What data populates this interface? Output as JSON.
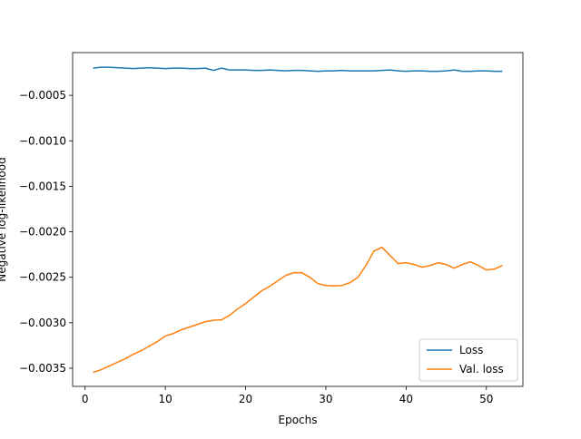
{
  "chart_data": {
    "type": "line",
    "xlabel": "Epochs",
    "ylabel": "Negative log-likelihood",
    "x": [
      1,
      2,
      3,
      4,
      5,
      6,
      7,
      8,
      9,
      10,
      11,
      12,
      13,
      14,
      15,
      16,
      17,
      18,
      19,
      20,
      21,
      22,
      23,
      24,
      25,
      26,
      27,
      28,
      29,
      30,
      31,
      32,
      33,
      34,
      35,
      36,
      37,
      38,
      39,
      40,
      41,
      42,
      43,
      44,
      45,
      46,
      47,
      48,
      49,
      50,
      51,
      52
    ],
    "series": [
      {
        "name": "Loss",
        "color": "#1f77b4",
        "values": [
          -0.000201,
          -0.000191,
          -0.000191,
          -0.000196,
          -0.000201,
          -0.000206,
          -0.000201,
          -0.000196,
          -0.000201,
          -0.000206,
          -0.000201,
          -0.000201,
          -0.000206,
          -0.000206,
          -0.000201,
          -0.000226,
          -0.000201,
          -0.000221,
          -0.000221,
          -0.000221,
          -0.000226,
          -0.000226,
          -0.000221,
          -0.000226,
          -0.000231,
          -0.000226,
          -0.000226,
          -0.000231,
          -0.000236,
          -0.000231,
          -0.000231,
          -0.000226,
          -0.000231,
          -0.000231,
          -0.000231,
          -0.000231,
          -0.000226,
          -0.000221,
          -0.000231,
          -0.000236,
          -0.000231,
          -0.000231,
          -0.000236,
          -0.000236,
          -0.000231,
          -0.000221,
          -0.000236,
          -0.000236,
          -0.000231,
          -0.000231,
          -0.000236,
          -0.000236
        ]
      },
      {
        "name": "Val. loss",
        "color": "#ff7f0e",
        "values": [
          -0.003546,
          -0.003516,
          -0.003476,
          -0.003436,
          -0.003396,
          -0.003347,
          -0.003307,
          -0.003257,
          -0.003207,
          -0.003147,
          -0.003118,
          -0.003078,
          -0.003048,
          -0.003018,
          -0.002988,
          -0.002973,
          -0.002968,
          -0.002918,
          -0.002849,
          -0.002789,
          -0.002719,
          -0.002649,
          -0.0026,
          -0.00254,
          -0.00248,
          -0.00245,
          -0.00245,
          -0.0025,
          -0.00257,
          -0.00259,
          -0.002595,
          -0.00259,
          -0.00256,
          -0.0025,
          -0.00237,
          -0.002211,
          -0.002171,
          -0.002261,
          -0.00235,
          -0.00234,
          -0.00236,
          -0.00239,
          -0.00237,
          -0.00234,
          -0.00236,
          -0.0024,
          -0.00236,
          -0.00233,
          -0.00237,
          -0.00242,
          -0.00241,
          -0.00237
        ]
      }
    ],
    "xlim": [
      -1.55,
      54.55
    ],
    "ylim": [
      -0.0037,
      -3e-05
    ],
    "xticks": [
      0,
      10,
      20,
      30,
      40,
      50
    ],
    "yticks": [
      {
        "value": -0.0035,
        "label": "−0.0035"
      },
      {
        "value": -0.003,
        "label": "−0.0030"
      },
      {
        "value": -0.0025,
        "label": "−0.0025"
      },
      {
        "value": -0.002,
        "label": "−0.0020"
      },
      {
        "value": -0.0015,
        "label": "−0.0015"
      },
      {
        "value": -0.001,
        "label": "−0.0010"
      },
      {
        "value": -0.0005,
        "label": "−0.0005"
      }
    ],
    "legend": "lower right",
    "grid": false
  }
}
